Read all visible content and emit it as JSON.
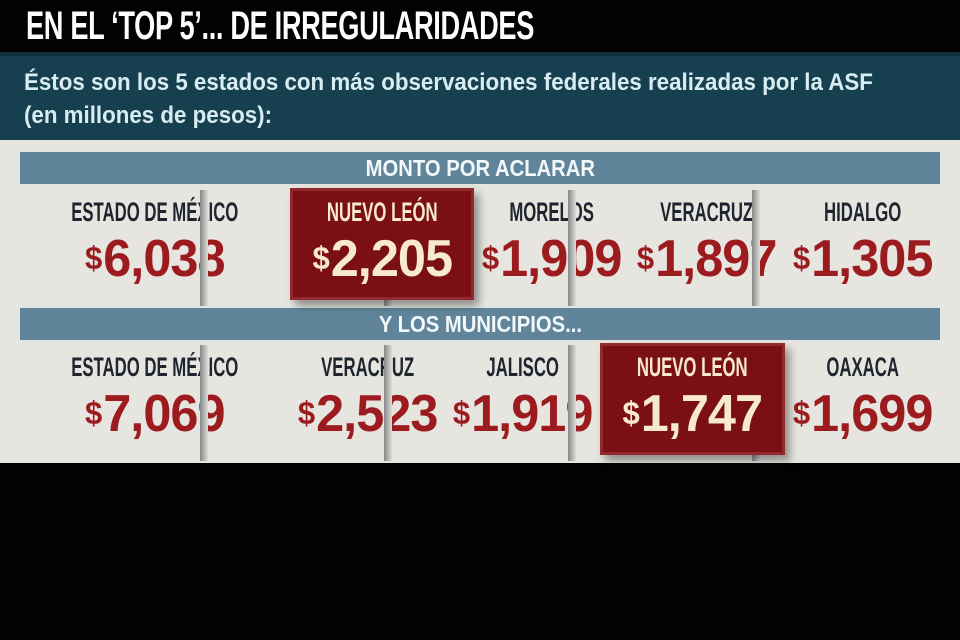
{
  "header": {
    "title": "EN EL ‘TOP 5’... DE IRREGULARIDADES"
  },
  "intro": {
    "line1": "Éstos son los 5 estados con más observaciones federales realizadas por la ASF",
    "line2": "(en millones de pesos):"
  },
  "sections": [
    {
      "header": "MONTO POR ACLARAR",
      "items": [
        {
          "state": "ESTADO DE MÉXICO",
          "currency": "$",
          "amount": "6,038",
          "highlight": false
        },
        {
          "state": "NUEVO LEÓN",
          "currency": "$",
          "amount": "2,205",
          "highlight": true
        },
        {
          "state": "MORELOS",
          "currency": "$",
          "amount": "1,909",
          "highlight": false
        },
        {
          "state": "VERACRUZ",
          "currency": "$",
          "amount": "1,897",
          "highlight": false
        },
        {
          "state": "HIDALGO",
          "currency": "$",
          "amount": "1,305",
          "highlight": false
        }
      ]
    },
    {
      "header": "Y LOS MUNICIPIOS...",
      "items": [
        {
          "state": "ESTADO DE MÉXICO",
          "currency": "$",
          "amount": "7,069",
          "highlight": false
        },
        {
          "state": "VERACRUZ",
          "currency": "$",
          "amount": "2,523",
          "highlight": false
        },
        {
          "state": "JALISCO",
          "currency": "$",
          "amount": "1,919",
          "highlight": false
        },
        {
          "state": "NUEVO LEÓN",
          "currency": "$",
          "amount": "1,747",
          "highlight": true
        },
        {
          "state": "OAXACA",
          "currency": "$",
          "amount": "1,699",
          "highlight": false
        }
      ]
    }
  ],
  "colors": {
    "title_bar_bg": "#020202",
    "intro_bg": "#16404f",
    "intro_text": "#d8ecf1",
    "panel_bg": "#e6e5e0",
    "section_bar_bg": "#60859a",
    "section_bar_text": "#f3f8fa",
    "state_label": "#1e252e",
    "amount_red": "#9c1b1f",
    "highlight_bg": "#7a1016",
    "highlight_border": "#94292c",
    "highlight_text": "#f7e9ce"
  },
  "chart_data": [
    {
      "type": "table",
      "title": "MONTO POR ACLARAR",
      "unit": "millones de pesos",
      "categories": [
        "Estado de México",
        "Nuevo León",
        "Morelos",
        "Veracruz",
        "Hidalgo"
      ],
      "values": [
        6038,
        2205,
        1909,
        1897,
        1305
      ],
      "highlighted_category": "Nuevo León"
    },
    {
      "type": "table",
      "title": "Y LOS MUNICIPIOS...",
      "unit": "millones de pesos",
      "categories": [
        "Estado de México",
        "Veracruz",
        "Jalisco",
        "Nuevo León",
        "Oaxaca"
      ],
      "values": [
        7069,
        2523,
        1919,
        1747,
        1699
      ],
      "highlighted_category": "Nuevo León"
    }
  ]
}
